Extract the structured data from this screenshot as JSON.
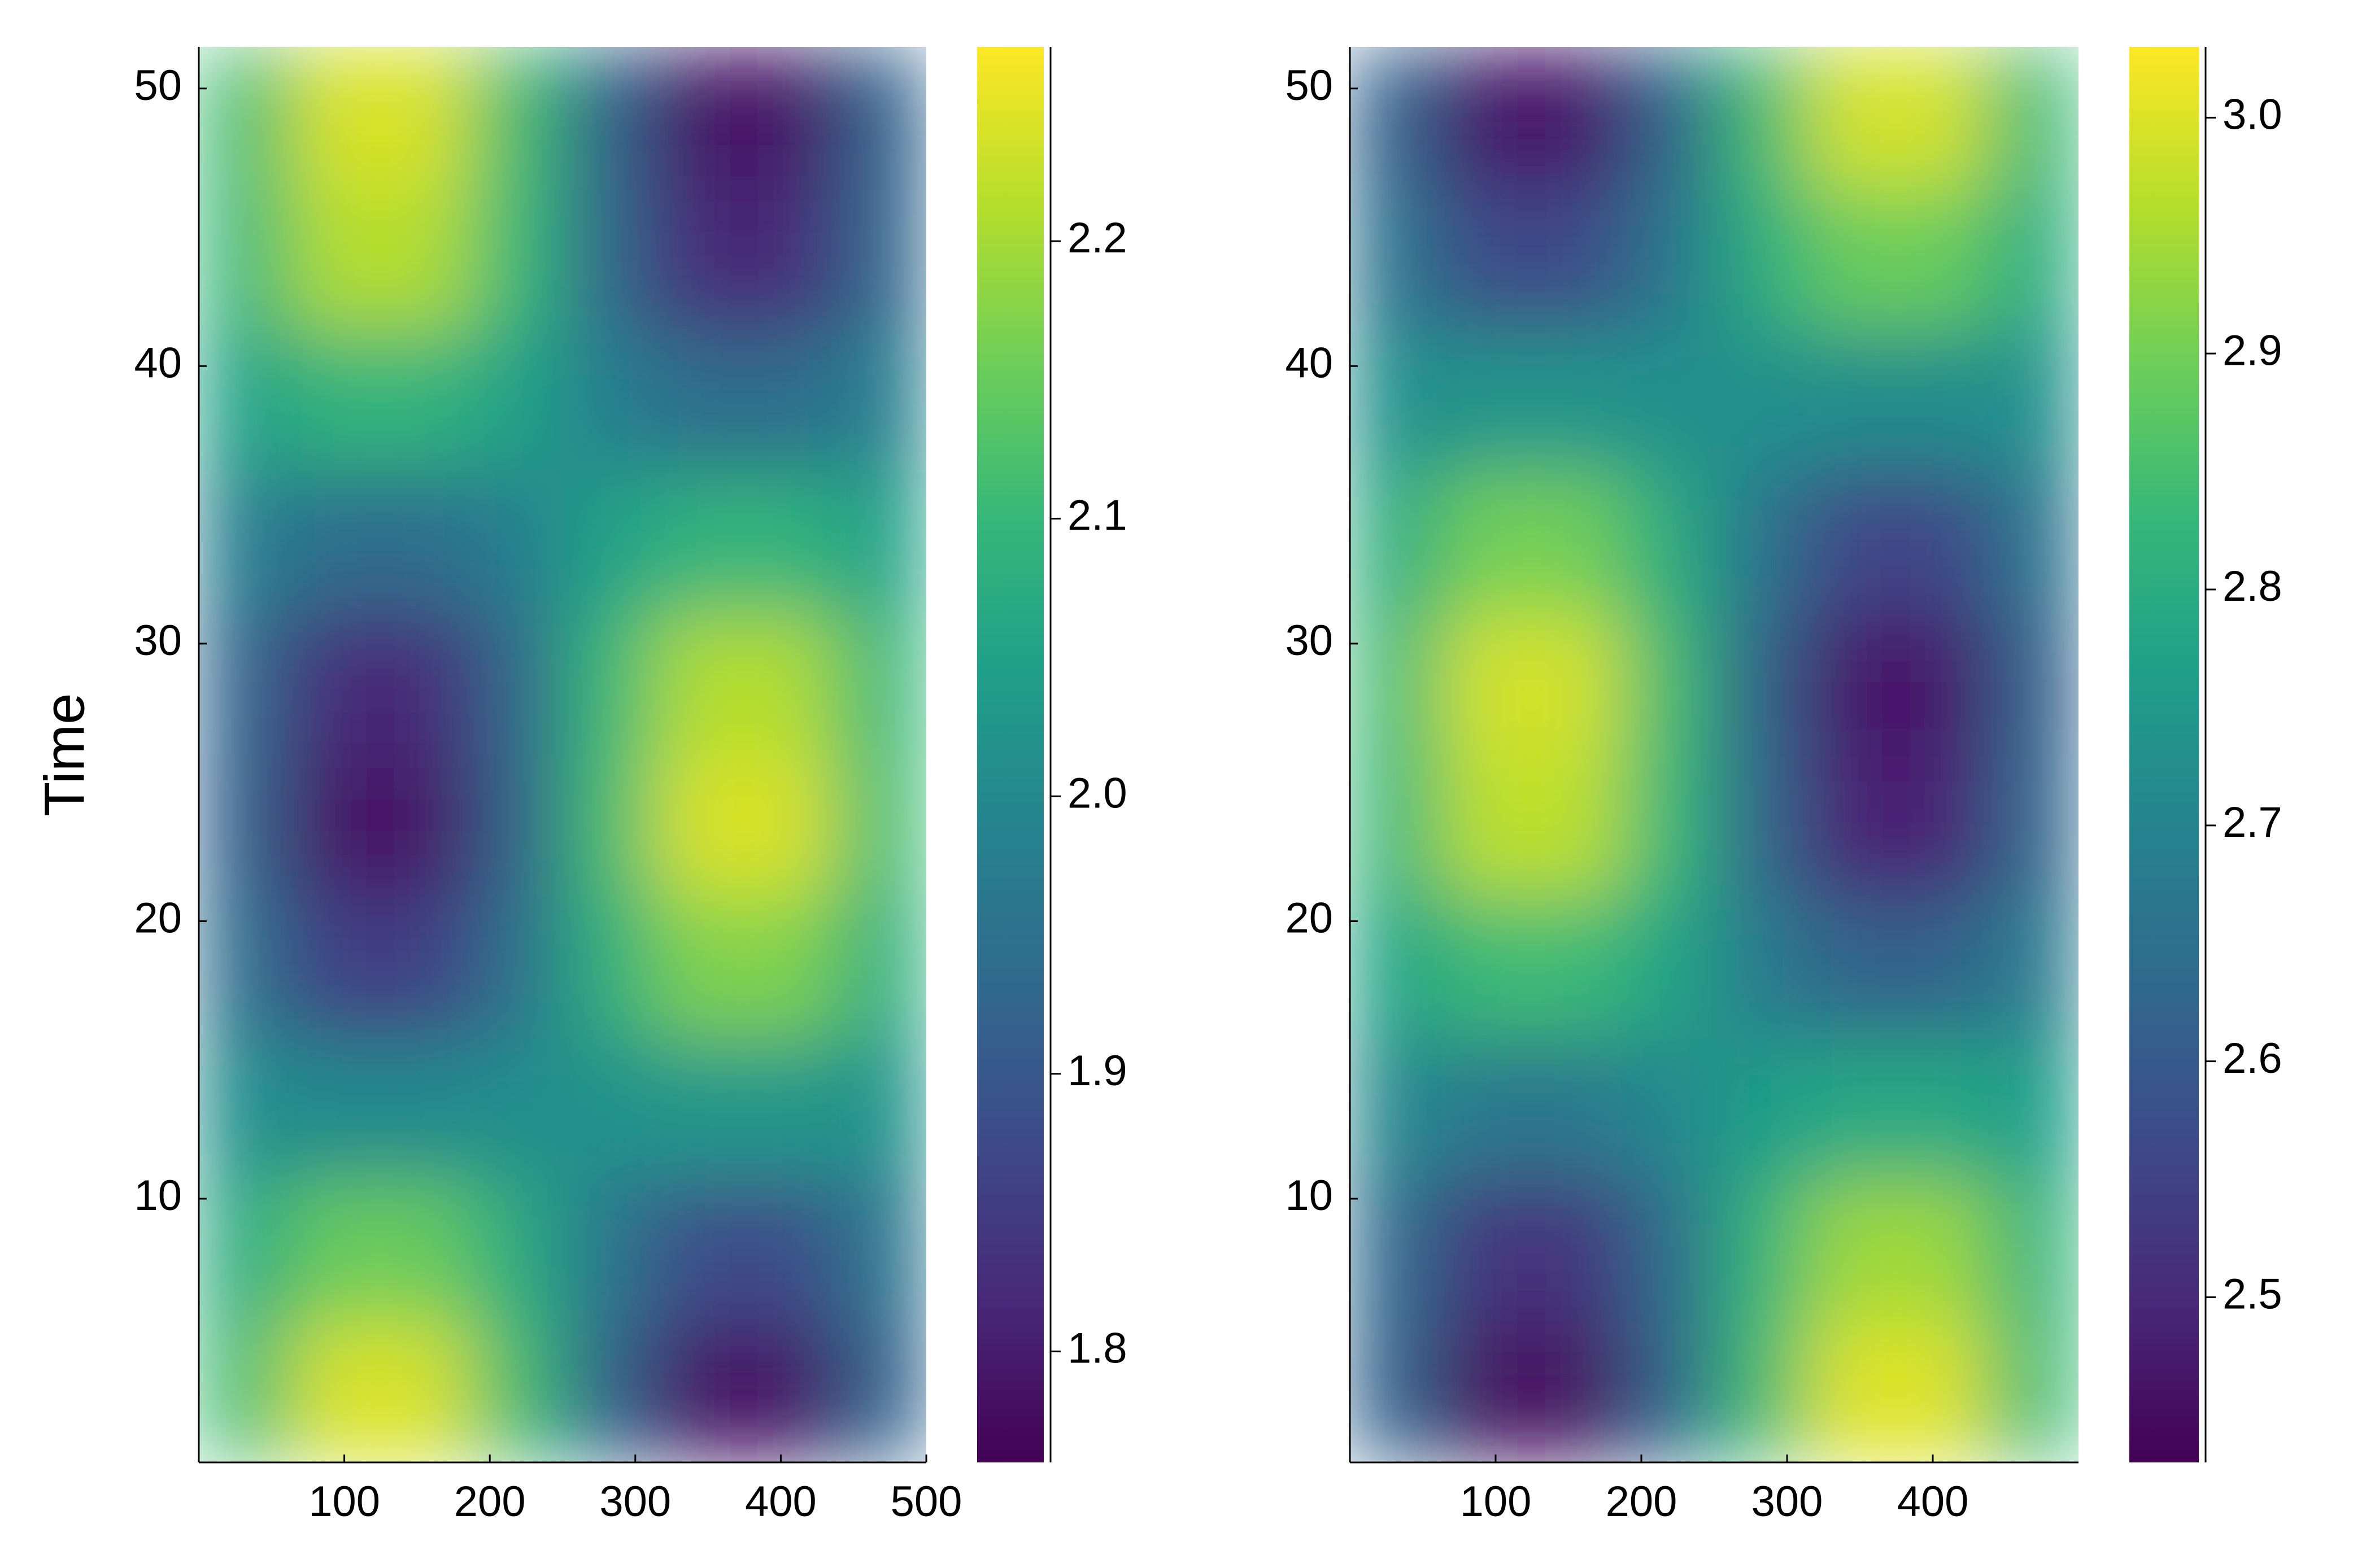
{
  "chart_data": [
    {
      "type": "heatmap",
      "ylabel": "Time",
      "colormap": "viridis",
      "x": [
        31.25,
        93.75,
        156.25,
        218.75,
        281.25,
        343.75,
        406.25,
        468.75
      ],
      "y": [
        3.05,
        8.15,
        13.25,
        18.35,
        23.45,
        28.55,
        33.65,
        38.75,
        43.85,
        48.95
      ],
      "z": [
        [
          2.11,
          2.24,
          2.24,
          2.11,
          1.92,
          1.79,
          1.79,
          1.92
        ],
        [
          2.07,
          2.15,
          2.15,
          2.07,
          1.96,
          1.88,
          1.88,
          1.96
        ],
        [
          2.01,
          2.0,
          2.0,
          2.01,
          2.02,
          2.03,
          2.03,
          2.02
        ],
        [
          1.95,
          1.86,
          1.86,
          1.95,
          2.08,
          2.17,
          2.17,
          2.08
        ],
        [
          1.92,
          1.79,
          1.79,
          1.92,
          2.11,
          2.24,
          2.24,
          2.11
        ],
        [
          1.93,
          1.82,
          1.82,
          1.93,
          2.1,
          2.21,
          2.21,
          2.1
        ],
        [
          1.98,
          1.94,
          1.94,
          1.98,
          2.05,
          2.09,
          2.09,
          2.05
        ],
        [
          2.05,
          2.09,
          2.09,
          2.05,
          1.98,
          1.94,
          1.94,
          1.98
        ],
        [
          2.1,
          2.21,
          2.21,
          2.1,
          1.93,
          1.82,
          1.82,
          1.93
        ],
        [
          2.11,
          2.24,
          2.24,
          2.11,
          1.92,
          1.79,
          1.79,
          1.92
        ]
      ],
      "xlim": [
        0,
        500
      ],
      "xticks": [
        100,
        200,
        300,
        400,
        500
      ],
      "ylim": [
        0.5,
        51.5
      ],
      "yticks": [
        10,
        20,
        30,
        40,
        50
      ],
      "clim": [
        1.76,
        2.27
      ],
      "cticks": [
        1.8,
        1.9,
        {
          "value": 2,
          "label": "2.0"
        },
        2.1,
        2.2
      ]
    },
    {
      "type": "heatmap",
      "colormap": "viridis",
      "x": [
        31.25,
        93.75,
        156.25,
        218.75,
        281.25,
        343.75,
        406.25,
        468.75
      ],
      "y": [
        3.05,
        8.15,
        13.25,
        18.35,
        23.45,
        28.55,
        33.65,
        38.75,
        43.85,
        48.95
      ],
      "z": [
        [
          2.62,
          2.46,
          2.46,
          2.62,
          2.84,
          3.0,
          3.0,
          2.84
        ],
        [
          2.64,
          2.52,
          2.52,
          2.64,
          2.82,
          2.94,
          2.94,
          2.82
        ],
        [
          2.71,
          2.67,
          2.67,
          2.71,
          2.76,
          2.79,
          2.79,
          2.76
        ],
        [
          2.78,
          2.84,
          2.84,
          2.78,
          2.68,
          2.62,
          2.62,
          2.68
        ],
        [
          2.83,
          2.97,
          2.97,
          2.83,
          2.63,
          2.49,
          2.49,
          2.63
        ],
        [
          2.84,
          2.99,
          2.99,
          2.84,
          2.62,
          2.47,
          2.47,
          2.62
        ],
        [
          2.8,
          2.9,
          2.9,
          2.8,
          2.66,
          2.56,
          2.56,
          2.66
        ],
        [
          2.73,
          2.74,
          2.74,
          2.73,
          2.73,
          2.72,
          2.72,
          2.73
        ],
        [
          2.66,
          2.57,
          2.57,
          2.66,
          2.8,
          2.89,
          2.89,
          2.8
        ],
        [
          2.62,
          2.47,
          2.47,
          2.62,
          2.84,
          2.99,
          2.99,
          2.84
        ]
      ],
      "xlim": [
        0,
        500
      ],
      "xticks": [
        100,
        200,
        300,
        400
      ],
      "ylim": [
        0.5,
        51.5
      ],
      "yticks": [
        10,
        20,
        30,
        40,
        50
      ],
      "clim": [
        2.43,
        3.03
      ],
      "cticks": [
        2.5,
        2.6,
        2.7,
        2.8,
        2.9,
        {
          "value": 3,
          "label": "3.0"
        }
      ]
    }
  ]
}
